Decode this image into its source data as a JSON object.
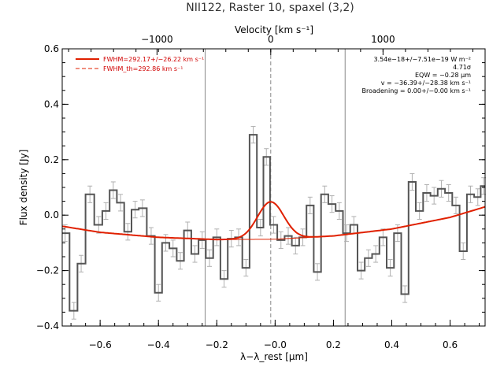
{
  "chart_data": {
    "type": "line",
    "title": "NII122, Raster 10, spaxel (3,2)",
    "xlabel": "λ−λ_rest [μm]",
    "ylabel": "Flux density [Jy]",
    "top_axis_label": "Velocity [km s⁻¹]",
    "xlim": [
      -0.73,
      0.72
    ],
    "ylim": [
      -0.4,
      0.6
    ],
    "x_ticks": [
      -0.6,
      -0.4,
      -0.2,
      0.0,
      0.2,
      0.4,
      0.6
    ],
    "x_tick_labels": [
      "−0.6",
      "−0.4",
      "−0.2",
      "−0.0",
      "0.2",
      "0.4",
      "0.6"
    ],
    "y_ticks": [
      -0.4,
      -0.2,
      0.0,
      0.2,
      0.4,
      0.6
    ],
    "y_tick_labels": [
      "−0.4",
      "−0.2",
      "0.0",
      "0.2",
      "0.4",
      "0.6"
    ],
    "top_ticks_velocity": [
      -1000,
      0,
      1000
    ],
    "top_tick_labels": [
      "−1000",
      "0",
      "1000"
    ],
    "top_tick_x": [
      -0.405,
      -0.015,
      0.37
    ],
    "vertical_lines_x": [
      -0.24,
      0.24
    ],
    "dashed_line_x": -0.015,
    "spectrum": {
      "x": [
        -0.72,
        -0.69,
        -0.665,
        -0.635,
        -0.605,
        -0.58,
        -0.555,
        -0.53,
        -0.505,
        -0.48,
        -0.455,
        -0.425,
        -0.4,
        -0.375,
        -0.35,
        -0.325,
        -0.3,
        -0.275,
        -0.25,
        -0.225,
        -0.2,
        -0.175,
        -0.15,
        -0.125,
        -0.1,
        -0.075,
        -0.05,
        -0.03,
        -0.005,
        0.02,
        0.045,
        0.07,
        0.095,
        0.12,
        0.145,
        0.17,
        0.195,
        0.22,
        0.245,
        0.27,
        0.295,
        0.32,
        0.345,
        0.37,
        0.395,
        0.42,
        0.445,
        0.47,
        0.495,
        0.52,
        0.545,
        0.57,
        0.595,
        0.62,
        0.645,
        0.67,
        0.695,
        0.715
      ],
      "y": [
        -0.065,
        -0.345,
        -0.175,
        0.075,
        -0.035,
        0.015,
        0.09,
        0.045,
        -0.06,
        0.02,
        0.025,
        -0.075,
        -0.28,
        -0.1,
        -0.12,
        -0.165,
        -0.055,
        -0.14,
        -0.09,
        -0.155,
        -0.08,
        -0.23,
        -0.085,
        -0.08,
        -0.19,
        0.29,
        -0.045,
        0.21,
        -0.035,
        -0.09,
        -0.075,
        -0.11,
        -0.08,
        0.035,
        -0.205,
        0.075,
        0.04,
        0.015,
        -0.065,
        -0.035,
        -0.2,
        -0.155,
        -0.14,
        -0.08,
        -0.19,
        -0.065,
        -0.285,
        0.12,
        0.015,
        0.08,
        0.07,
        0.095,
        0.08,
        0.035,
        -0.13,
        0.075,
        0.065,
        0.105
      ],
      "err": [
        0.03,
        0.03,
        0.03,
        0.03,
        0.03,
        0.03,
        0.03,
        0.03,
        0.03,
        0.03,
        0.03,
        0.03,
        0.03,
        0.03,
        0.03,
        0.03,
        0.03,
        0.03,
        0.03,
        0.03,
        0.03,
        0.03,
        0.03,
        0.03,
        0.03,
        0.03,
        0.03,
        0.03,
        0.03,
        0.03,
        0.03,
        0.03,
        0.03,
        0.03,
        0.03,
        0.03,
        0.03,
        0.03,
        0.03,
        0.03,
        0.03,
        0.03,
        0.03,
        0.03,
        0.03,
        0.03,
        0.03,
        0.03,
        0.03,
        0.03,
        0.03,
        0.03,
        0.03,
        0.03,
        0.03,
        0.03,
        0.03,
        0.03
      ]
    },
    "fit": {
      "continuum": [
        [
          -0.73,
          -0.04
        ],
        [
          -0.6,
          -0.062
        ],
        [
          -0.4,
          -0.08
        ],
        [
          -0.2,
          -0.088
        ],
        [
          0.0,
          -0.087
        ],
        [
          0.2,
          -0.075
        ],
        [
          0.4,
          -0.05
        ],
        [
          0.6,
          -0.008
        ],
        [
          0.72,
          0.03
        ]
      ],
      "gaussian": {
        "center": -0.015,
        "peak_flux": 0.048,
        "sigma_um": 0.045
      }
    },
    "legend": [
      {
        "label": "FWHM=292.17+/−26.22 km s⁻¹",
        "style": "solid"
      },
      {
        "label": "FWHM_th=292.86 km s⁻¹",
        "style": "dashed"
      }
    ],
    "annotations": [
      "3.54e−18+/−7.51e−19 W m⁻²",
      "4.71σ",
      "EQW = −0.28 μm",
      "v = −36.39+/−28.38 km s⁻¹",
      "Broadening = 0.00+/−0.00 km s⁻¹"
    ],
    "colors": {
      "spectrum": "#555555",
      "errorbars": "#b0b0b0",
      "fit": "#e02000",
      "vlines": "#888888"
    }
  }
}
